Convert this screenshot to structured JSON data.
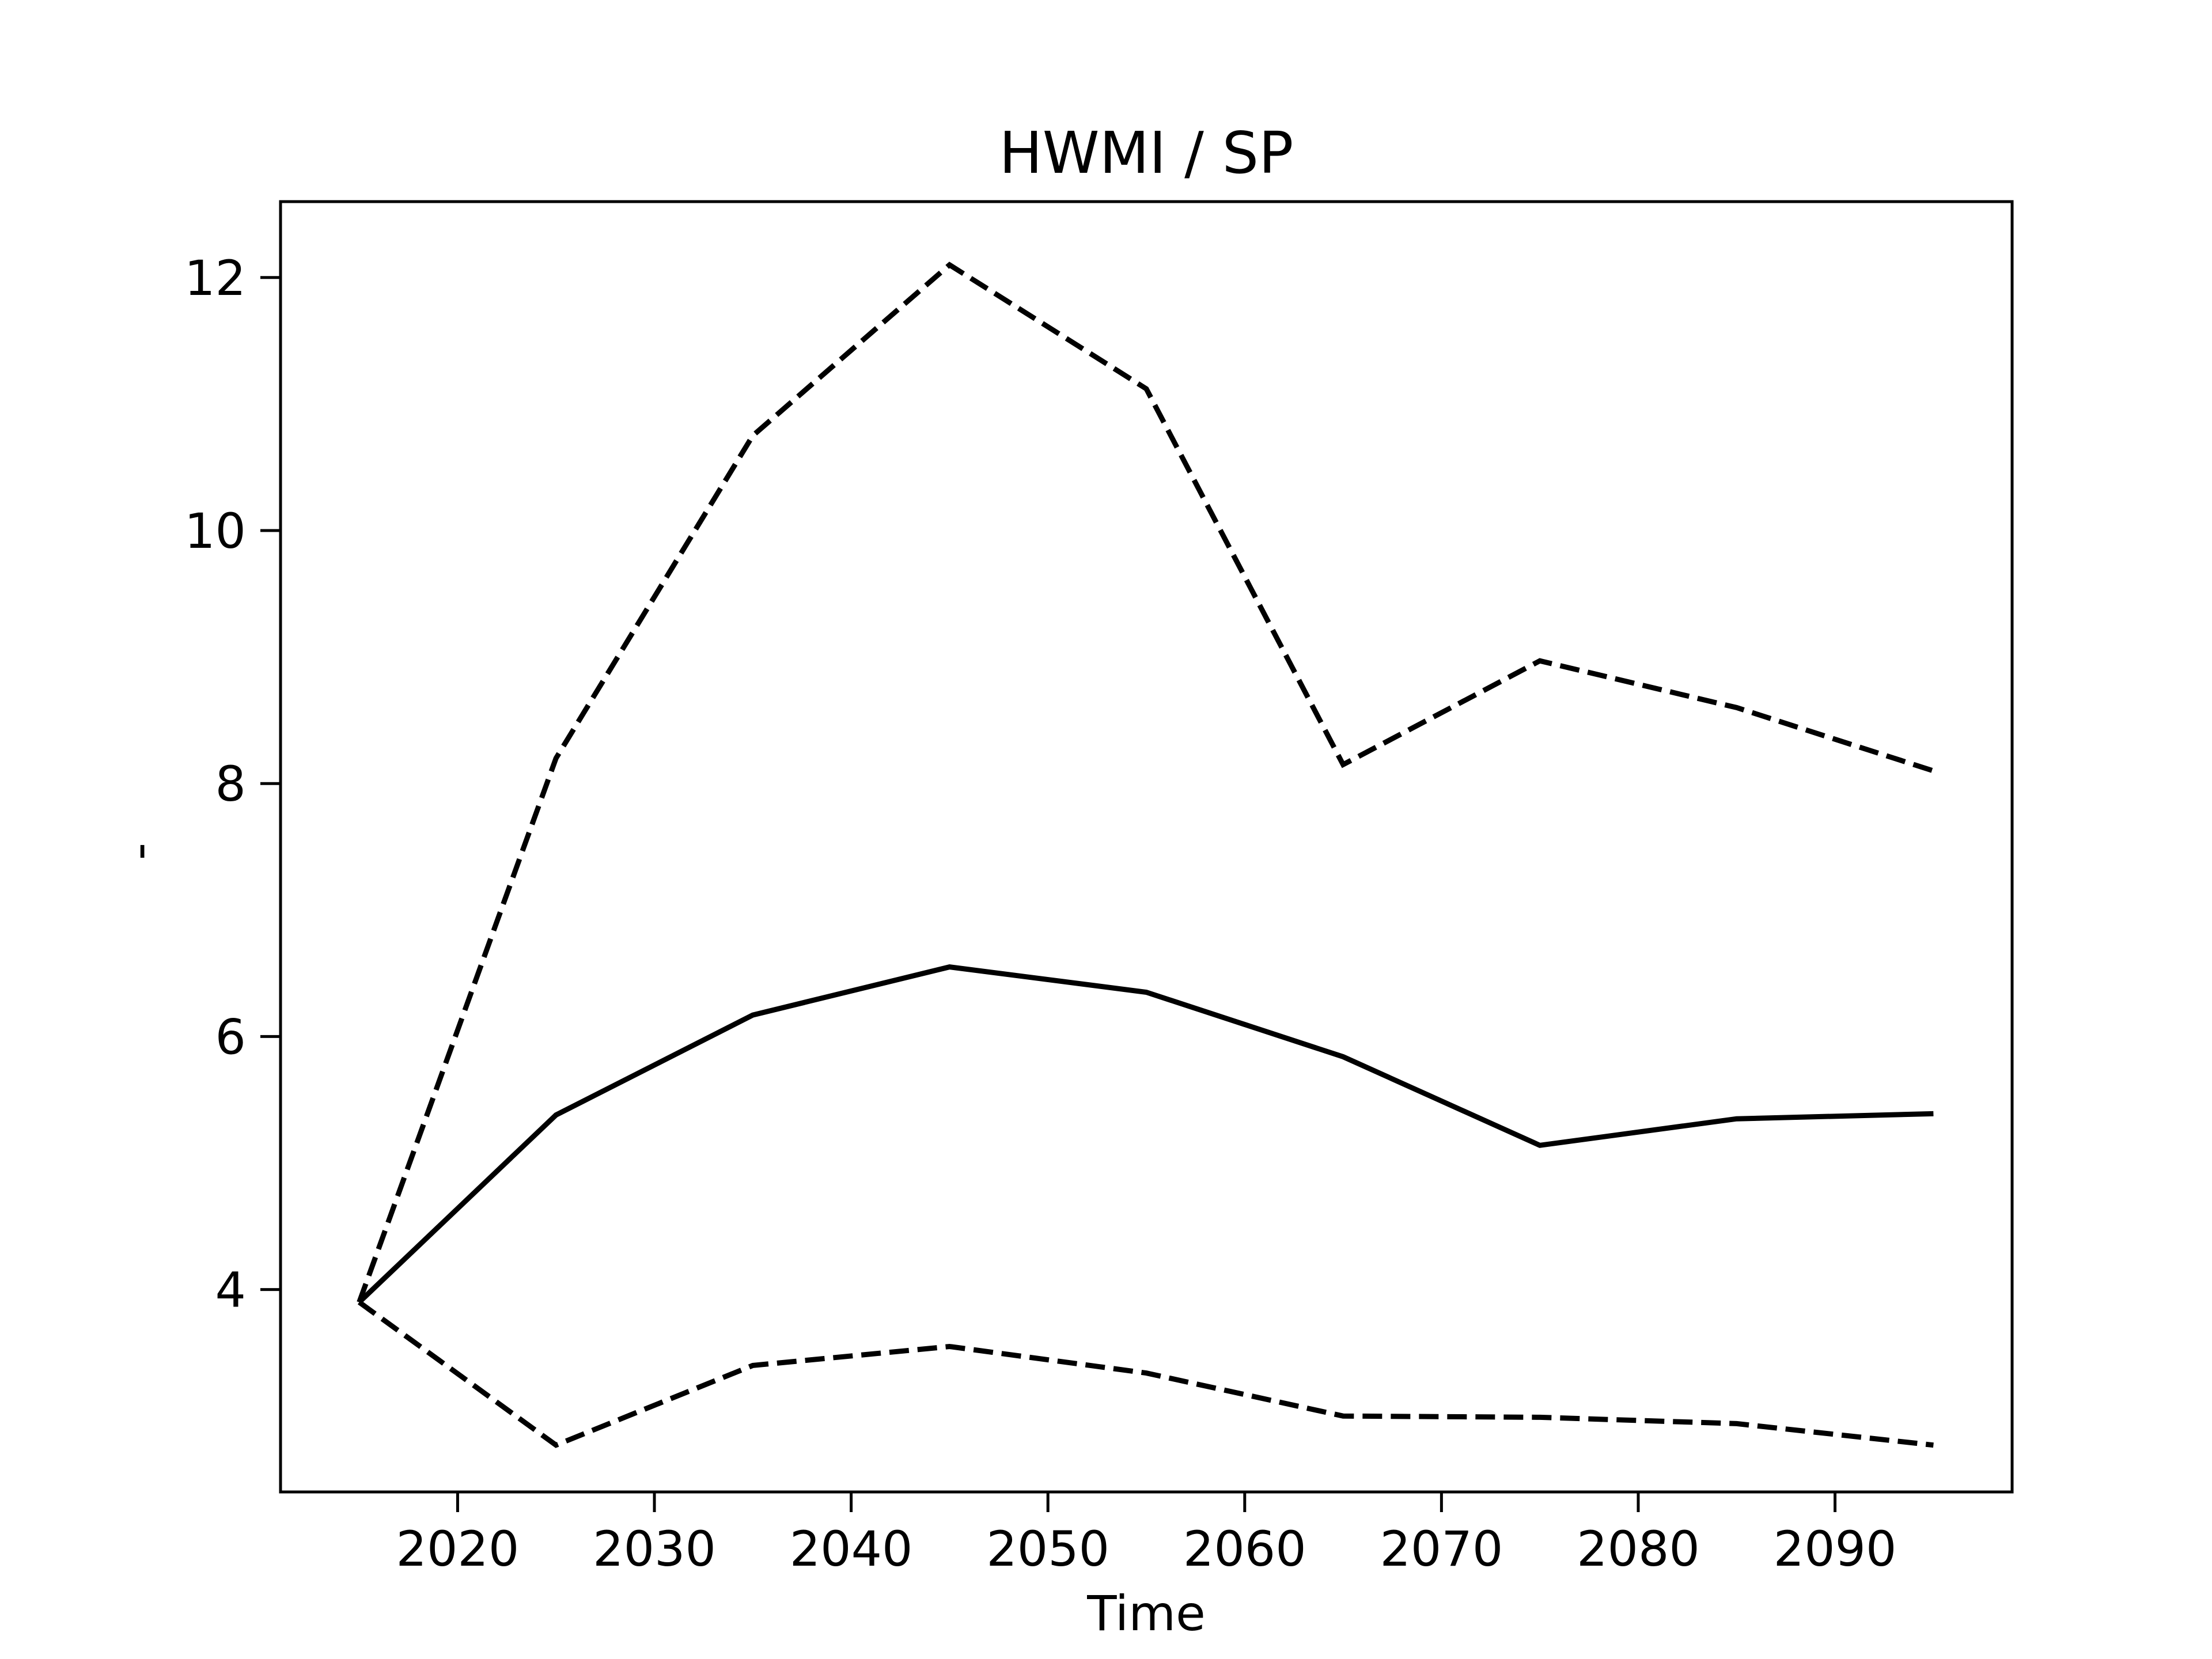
{
  "chart_data": {
    "type": "line",
    "title": "HWMI / SP",
    "xlabel": "Time",
    "ylabel": "-",
    "xlim": [
      2011,
      2099
    ],
    "ylim": [
      2.4,
      12.6
    ],
    "xticks": [
      2020,
      2030,
      2040,
      2050,
      2060,
      2070,
      2080,
      2090
    ],
    "yticks": [
      4,
      6,
      8,
      10,
      12
    ],
    "grid": false,
    "legend": "none",
    "x": [
      2015,
      2025,
      2035,
      2045,
      2055,
      2065,
      2075,
      2085,
      2095
    ],
    "series": [
      {
        "style": "dashed",
        "color": "#000000",
        "values": [
          3.9,
          8.2,
          10.75,
          12.1,
          11.12,
          8.15,
          8.97,
          8.6,
          8.1
        ]
      },
      {
        "style": "solid",
        "color": "#000000",
        "values": [
          3.9,
          5.38,
          6.17,
          6.55,
          6.35,
          5.84,
          5.14,
          5.35,
          5.39
        ]
      },
      {
        "style": "dashed",
        "color": "#000000",
        "values": [
          3.9,
          2.77,
          3.4,
          3.55,
          3.34,
          3.0,
          2.99,
          2.94,
          2.77
        ]
      }
    ]
  }
}
